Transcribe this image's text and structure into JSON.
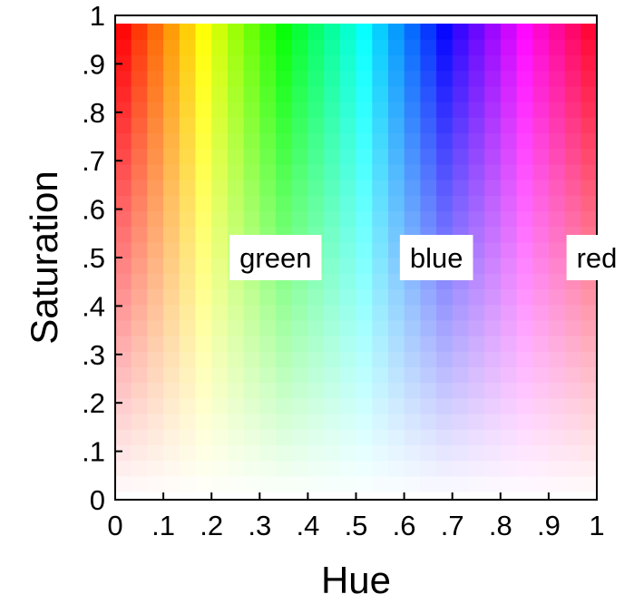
{
  "chart_data": {
    "type": "heatmap",
    "xlabel": "Hue",
    "ylabel": "Saturation",
    "xlim": [
      0,
      1
    ],
    "ylim": [
      0,
      1
    ],
    "x_ticks": [
      "0",
      ".1",
      ".2",
      ".3",
      ".4",
      ".5",
      ".6",
      ".7",
      ".8",
      ".9",
      "1"
    ],
    "y_ticks": [
      "0",
      ".1",
      ".2",
      ".3",
      ".4",
      ".5",
      ".6",
      ".7",
      ".8",
      ".9",
      "1"
    ],
    "grid": false,
    "color_mapping": "hsv (hue = x, saturation = y, value = 1)",
    "cell_count": {
      "hue": 30,
      "saturation": 30
    },
    "value_range": {
      "hue": [
        0,
        0.967
      ],
      "saturation": [
        0.033,
        0.967
      ]
    },
    "annotations": [
      {
        "text": "green",
        "x": 0.333,
        "y": 0.5
      },
      {
        "text": "blue",
        "x": 0.667,
        "y": 0.5
      },
      {
        "text": "red",
        "x": 1.0,
        "y": 0.5
      }
    ],
    "colors": {
      "frame": "#000000",
      "background": "#ffffff",
      "label_box": "#ffffff"
    }
  }
}
